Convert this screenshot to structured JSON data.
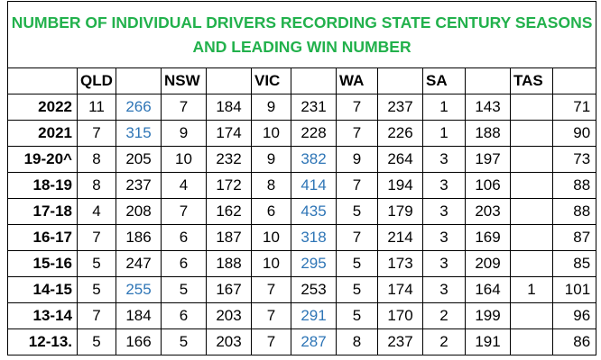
{
  "title": [
    "NUMBER OF INDIVIDUAL DRIVERS RECORDING STATE CENTURY SEASONS",
    "AND LEADING WIN NUMBER"
  ],
  "title_color": "#22b14c",
  "highlight_color": "#2e75b6",
  "table": {
    "header": [
      "QLD",
      "NSW",
      "VIC",
      "WA",
      "SA",
      "TAS"
    ],
    "rows": [
      [
        "2022",
        11,
        266,
        7,
        184,
        9,
        231,
        7,
        237,
        1,
        143,
        null,
        71
      ],
      [
        "2021",
        7,
        315,
        9,
        174,
        10,
        228,
        7,
        226,
        1,
        188,
        null,
        90
      ],
      [
        "19-20^",
        8,
        205,
        10,
        232,
        9,
        382,
        9,
        264,
        3,
        197,
        null,
        73
      ],
      [
        "18-19",
        8,
        237,
        4,
        172,
        8,
        414,
        7,
        194,
        3,
        106,
        null,
        88
      ],
      [
        "17-18",
        4,
        208,
        7,
        162,
        6,
        435,
        5,
        179,
        3,
        203,
        null,
        88
      ],
      [
        "16-17",
        7,
        186,
        6,
        187,
        10,
        318,
        7,
        214,
        3,
        169,
        null,
        87
      ],
      [
        "15-16",
        5,
        247,
        6,
        188,
        10,
        295,
        5,
        173,
        3,
        209,
        null,
        85
      ],
      [
        "14-15",
        5,
        255,
        5,
        167,
        7,
        253,
        5,
        174,
        3,
        164,
        1,
        101
      ],
      [
        "13-14",
        7,
        184,
        6,
        203,
        7,
        291,
        5,
        170,
        2,
        199,
        null,
        96
      ],
      [
        "12-13.",
        5,
        166,
        5,
        203,
        7,
        287,
        8,
        237,
        2,
        191,
        null,
        86
      ]
    ]
  }
}
